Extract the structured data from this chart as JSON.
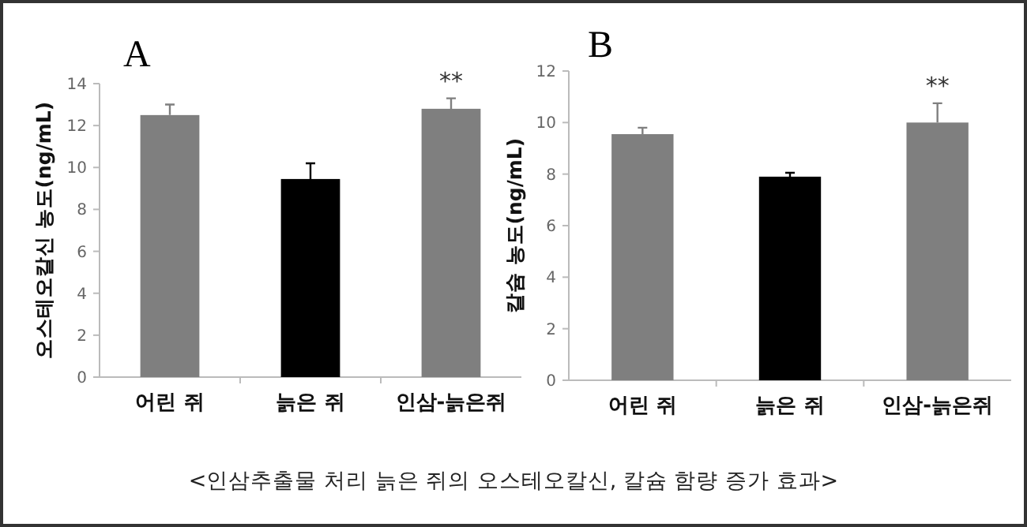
{
  "chart_data": [
    {
      "type": "bar",
      "title": "A",
      "ylabel": "오스테오칼신 농도(ng/mL)",
      "categories": [
        "어린 쥐",
        "늙은 쥐",
        "인삼-늙은쥐"
      ],
      "values": [
        12.5,
        9.45,
        12.8
      ],
      "errors": [
        0.5,
        0.75,
        0.5
      ],
      "colors": [
        "#7f7f7f",
        "#000000",
        "#7f7f7f"
      ],
      "ylim": [
        0,
        14
      ],
      "yticks": [
        0,
        2,
        4,
        6,
        8,
        10,
        12,
        14
      ],
      "grid": false,
      "annotations": [
        "**"
      ]
    },
    {
      "type": "bar",
      "title": "B",
      "ylabel": "칼슘 농도(ng/mL)",
      "categories": [
        "어린 쥐",
        "늙은 쥐",
        "인삼-늙은쥐"
      ],
      "values": [
        9.55,
        7.9,
        10.0
      ],
      "errors": [
        0.25,
        0.15,
        0.75
      ],
      "colors": [
        "#7f7f7f",
        "#000000",
        "#7f7f7f"
      ],
      "ylim": [
        0,
        12
      ],
      "yticks": [
        0,
        2,
        4,
        6,
        8,
        10,
        12
      ],
      "grid": false,
      "annotations": [
        "**",
        "<인삼추출물 처리 늙은 쥐의 오스테오칼신, 칼슘 함량 증가 효과>"
      ]
    }
  ]
}
